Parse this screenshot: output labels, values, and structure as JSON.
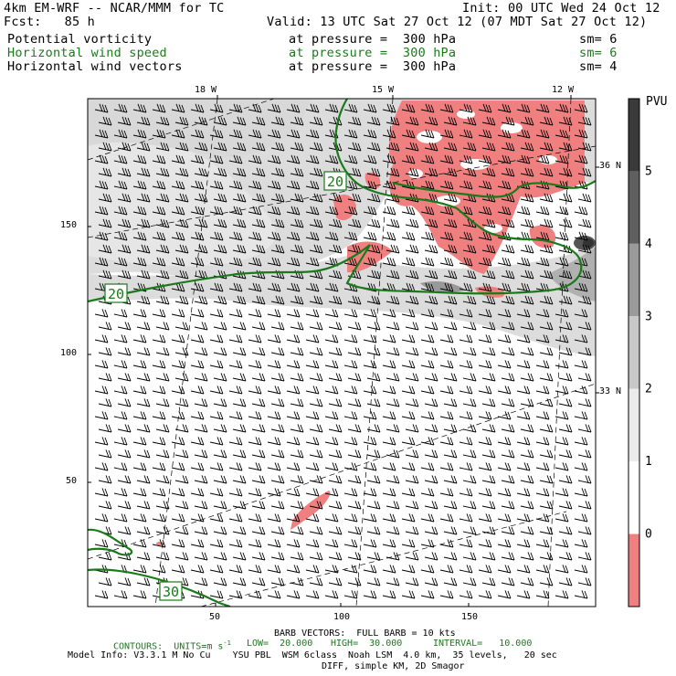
{
  "header": {
    "model_title": "4km EM-WRF -- NCAR/MMM for TC",
    "init": "Init: 00 UTC Wed 24 Oct 12",
    "fcst": "Fcst:   85 h",
    "valid": "Valid: 13 UTC Sat 27 Oct 12 (07 MDT Sat 27 Oct 12)"
  },
  "fields": [
    {
      "name": "Potential vorticity",
      "pressure": "at pressure =  300 hPa",
      "sm": "sm= 6",
      "color": "#000000"
    },
    {
      "name": "Horizontal wind speed",
      "pressure": "at pressure =  300 hPa",
      "sm": "sm= 6",
      "color": "#1a7a1a"
    },
    {
      "name": "Horizontal wind vectors",
      "pressure": "at pressure =  300 hPa",
      "sm": "sm= 4",
      "color": "#000000"
    }
  ],
  "map": {
    "top_lon_labels": [
      "18 W",
      "15 W",
      "12 W"
    ],
    "right_lat_labels": [
      "36 N",
      "33 N"
    ],
    "y_ticks": [
      "150",
      "100",
      "50"
    ],
    "x_ticks": [
      "50",
      "100",
      "150"
    ],
    "contour_labels": [
      "20",
      "20",
      "30"
    ]
  },
  "colorbar": {
    "title": "PVU",
    "labels": [
      "5",
      "4",
      "3",
      "2",
      "1",
      "0"
    ],
    "colors": [
      "#3a3a3a",
      "#5f5f5f",
      "#9a9a9a",
      "#c8c8c8",
      "#ebebeb",
      "#ffffff",
      "#f08080"
    ]
  },
  "footer": {
    "barb": "BARB VECTORS:  FULL BARB = 10 kts",
    "contours": "CONTOURS:  UNITS=m s",
    "contours_sup": "-1",
    "low": "LOW=  20.000",
    "high": "HIGH=  30.000",
    "interval": "INTERVAL=   10.000",
    "model_info": "Model Info: V3.3.1 M No Cu    YSU PBL  WSM 6class  Noah LSM  4.0 km,  35 levels,   20 sec",
    "model_info2": "DIFF, simple KM, 2D Smagor"
  },
  "colors": {
    "contour": "#1a7a1a",
    "pv_red": "#f08080",
    "pv_grey": "#c8c8c8"
  }
}
